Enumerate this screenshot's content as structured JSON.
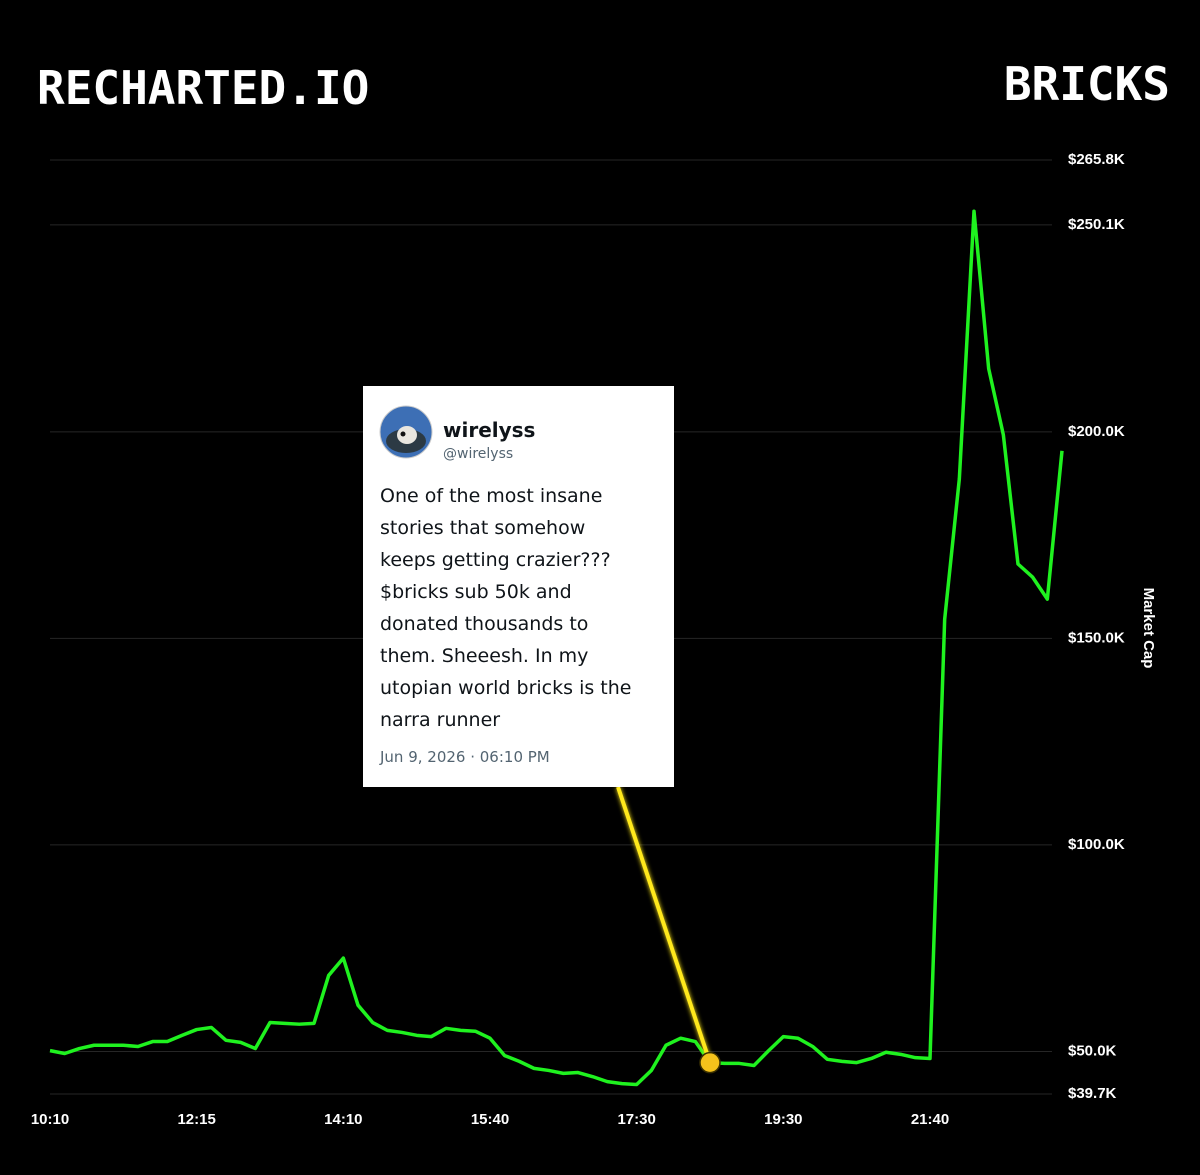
{
  "header": {
    "brand": "RECHARTED.IO",
    "ticker": "BRICKS"
  },
  "chart_data": {
    "type": "line",
    "y_label": "Market Cap",
    "color": "#1ff21f",
    "grid": true,
    "categories": [
      "10:10",
      null,
      null,
      null,
      null,
      null,
      null,
      null,
      null,
      null,
      "12:15",
      null,
      null,
      null,
      null,
      null,
      null,
      null,
      null,
      null,
      "14:10",
      null,
      null,
      null,
      null,
      null,
      null,
      null,
      null,
      null,
      "15:40",
      null,
      null,
      null,
      null,
      null,
      null,
      null,
      null,
      null,
      "17:30",
      null,
      null,
      null,
      null,
      null,
      null,
      null,
      null,
      null,
      "19:30",
      null,
      null,
      null,
      null,
      null,
      null,
      null,
      null,
      null,
      "21:40",
      null,
      null,
      null,
      null,
      null,
      null,
      null,
      null,
      null
    ],
    "values": [
      50200,
      49500,
      50700,
      51500,
      51500,
      51500,
      51200,
      52400,
      52400,
      53900,
      55300,
      55800,
      52700,
      52200,
      50700,
      57000,
      56800,
      56600,
      56800,
      68400,
      72600,
      61200,
      57000,
      55100,
      54600,
      53900,
      53600,
      55600,
      55100,
      54900,
      53200,
      49000,
      47600,
      45900,
      45400,
      44700,
      44900,
      43900,
      42700,
      42200,
      42000,
      45400,
      51500,
      53200,
      52400,
      47300,
      47100,
      47100,
      46600,
      50200,
      53600,
      53200,
      51200,
      48100,
      47600,
      47300,
      48300,
      49800,
      49300,
      48500,
      48300,
      154600,
      188600,
      253400,
      215300,
      199300,
      168000,
      164800,
      159500,
      195400
    ],
    "ylim": [
      39700,
      265800
    ],
    "yticks": [
      {
        "value": 265800,
        "label": "$265.8K"
      },
      {
        "value": 250100,
        "label": "$250.1K"
      },
      {
        "value": 200000,
        "label": "$200.0K"
      },
      {
        "value": 150000,
        "label": "$150.0K"
      },
      {
        "value": 100000,
        "label": "$100.0K"
      },
      {
        "value": 50000,
        "label": "$50.0K"
      },
      {
        "value": 39700,
        "label": "$39.7K"
      }
    ],
    "annotation": {
      "index": 45,
      "color": "#ffe81a",
      "name": "wirelyss",
      "handle": "@wirelyss",
      "text_lines": [
        "One of the most insane",
        "stories that somehow",
        "keeps getting crazier???",
        "$bricks sub 50k and",
        "donated thousands to",
        "them. Sheeesh. In my",
        "utopian world bricks is the",
        "narra runner"
      ],
      "date": "Jun 9, 2026 · 06:10 PM"
    }
  }
}
